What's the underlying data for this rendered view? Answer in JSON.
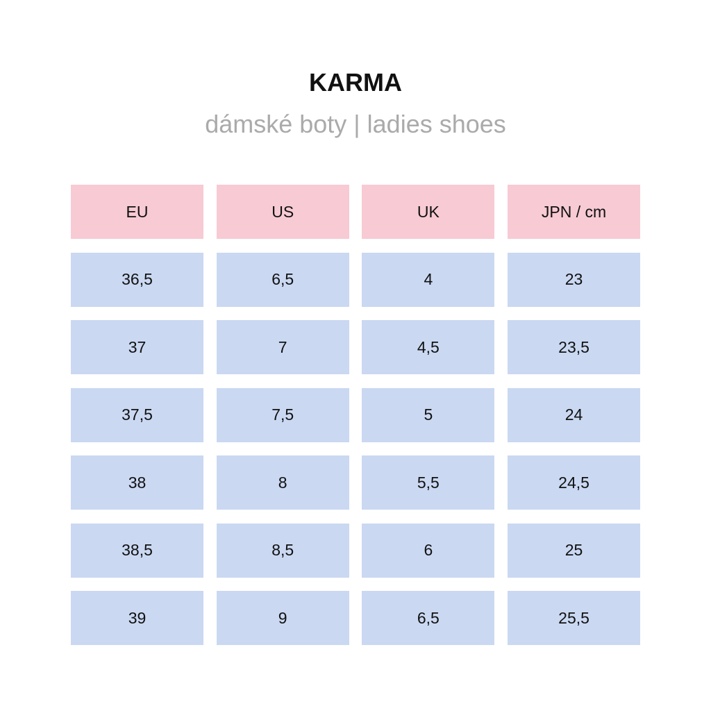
{
  "header": {
    "title": "KARMA",
    "subtitle": "dámské boty | ladies shoes"
  },
  "colors": {
    "header_cell": "#f7cad4",
    "data_cell": "#cad8f2"
  },
  "table": {
    "columns": [
      "EU",
      "US",
      "UK",
      "JPN / cm"
    ],
    "rows": [
      [
        "36,5",
        "6,5",
        "4",
        "23"
      ],
      [
        "37",
        "7",
        "4,5",
        "23,5"
      ],
      [
        "37,5",
        "7,5",
        "5",
        "24"
      ],
      [
        "38",
        "8",
        "5,5",
        "24,5"
      ],
      [
        "38,5",
        "8,5",
        "6",
        "25"
      ],
      [
        "39",
        "9",
        "6,5",
        "25,5"
      ]
    ]
  }
}
